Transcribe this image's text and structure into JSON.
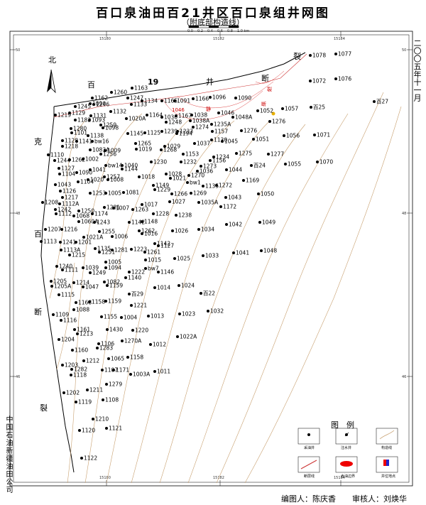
{
  "title": "百口泉油田百21井区百口泉组井网图",
  "subtitle": "（附底部构造线）",
  "scale_bar": {
    "ticks": [
      "0.0",
      "0.2",
      "0.4",
      "0.6",
      "0.8",
      "1.0 km"
    ]
  },
  "right_date": "二〇〇五年十一月",
  "left_org": "中国石油新疆油田公司",
  "footer": {
    "compiler": "编图人：陈庆香",
    "reviewer": "审核人：刘焕华"
  },
  "map_labels": {
    "north": "北",
    "bai": "百",
    "num19": "19",
    "jing": "井",
    "duan_top": "断",
    "lie_top": "裂",
    "ke": "克",
    "bai_left": "百",
    "duan_left": "断",
    "lie_left": "裂",
    "red1": "1046",
    "red2": "裂",
    "red3": "断",
    "red4": "静"
  },
  "coord_labels": {
    "top": [
      "15180",
      "15182",
      "15184"
    ],
    "bottom": [
      "15180",
      "15182",
      "15184"
    ],
    "left": [
      "50",
      "48",
      "46"
    ],
    "right": [
      "50",
      "48",
      "46"
    ]
  },
  "legend": {
    "title": "图　例",
    "items": [
      "采油井",
      "注水井",
      "构造线",
      "断层线",
      "含油边界",
      "井位地点"
    ]
  },
  "wells": [
    [
      "1078",
      437,
      78
    ],
    [
      "1077",
      473,
      76
    ],
    [
      "1072",
      437,
      114
    ],
    [
      "1076",
      473,
      111
    ],
    [
      "1052",
      363,
      156
    ],
    [
      "1057",
      398,
      153
    ],
    [
      "百25",
      438,
      151
    ],
    [
      "百27",
      527,
      143
    ],
    [
      "1276",
      380,
      171
    ],
    [
      "1056",
      400,
      191
    ],
    [
      "1071",
      443,
      190
    ],
    [
      "1051",
      357,
      196
    ],
    [
      "1276b",
      340,
      184
    ],
    [
      "1277",
      378,
      217
    ],
    [
      "1055",
      402,
      231
    ],
    [
      "1070",
      447,
      228
    ],
    [
      "1275",
      333,
      216
    ],
    [
      "1044",
      319,
      239
    ],
    [
      "百24",
      354,
      233
    ],
    [
      "1169",
      343,
      254
    ],
    [
      "1043",
      318,
      278
    ],
    [
      "1050",
      364,
      273
    ],
    [
      "1172",
      311,
      291
    ],
    [
      "1042",
      319,
      316
    ],
    [
      "1049",
      366,
      313
    ],
    [
      "1041",
      329,
      356
    ],
    [
      "1048",
      368,
      353
    ],
    [
      "1034",
      280,
      323
    ],
    [
      "1033",
      286,
      360
    ],
    [
      "1025",
      246,
      364
    ],
    [
      "1024",
      252,
      402
    ],
    [
      "百22",
      283,
      413
    ],
    [
      "1032",
      293,
      438
    ],
    [
      "1023",
      253,
      442
    ],
    [
      "1022A",
      250,
      474
    ],
    [
      "1014",
      218,
      405
    ],
    [
      "1013",
      209,
      445
    ],
    [
      "1012",
      212,
      485
    ],
    [
      "1011",
      218,
      523
    ],
    [
      "1260",
      157,
      130
    ],
    [
      "1163",
      186,
      124
    ],
    [
      "1162",
      130,
      138
    ],
    [
      "1247",
      180,
      138
    ],
    [
      "1245",
      106,
      150
    ],
    [
      "1246",
      132,
      147
    ],
    [
      "1090",
      127,
      146
    ],
    [
      "1133",
      185,
      147
    ],
    [
      "1134",
      200,
      142
    ],
    [
      "1165",
      228,
      142
    ],
    [
      "1091",
      246,
      142
    ],
    [
      "1166",
      272,
      139
    ],
    [
      "1096",
      296,
      137
    ],
    [
      "1090b",
      332,
      138
    ],
    [
      "1219",
      78,
      162
    ],
    [
      "1129",
      98,
      159
    ],
    [
      "1132",
      156,
      157
    ],
    [
      "1131",
      128,
      163
    ],
    [
      "1182",
      106,
      169
    ],
    [
      "1093",
      126,
      169
    ],
    [
      "1020A",
      178,
      167
    ],
    [
      "1164",
      207,
      162
    ],
    [
      "1030",
      228,
      165
    ],
    [
      "1167",
      248,
      163
    ],
    [
      "1038",
      270,
      162
    ],
    [
      "1046",
      308,
      159
    ],
    [
      "1048A",
      328,
      165
    ],
    [
      "1280",
      100,
      181
    ],
    [
      "1259",
      142,
      176
    ],
    [
      "1098",
      145,
      180
    ],
    [
      "1248",
      234,
      172
    ],
    [
      "1038A",
      268,
      170
    ],
    [
      "1274",
      272,
      179
    ],
    [
      "1235A",
      298,
      175
    ],
    [
      "1157",
      299,
      185
    ],
    [
      "1101",
      101,
      187
    ],
    [
      "1138",
      124,
      191
    ],
    [
      "1145",
      180,
      188
    ],
    [
      "1239",
      228,
      185
    ],
    [
      "1233",
      250,
      185
    ],
    [
      "1125",
      204,
      187
    ],
    [
      "1194",
      249,
      188
    ],
    [
      "1128",
      88,
      198
    ],
    [
      "1141",
      108,
      199
    ],
    [
      "1bw16",
      130,
      199
    ],
    [
      "1265",
      191,
      202
    ],
    [
      "1029",
      232,
      206
    ],
    [
      "1130",
      298,
      197
    ],
    [
      "1045",
      313,
      199
    ],
    [
      "1218",
      88,
      206
    ],
    [
      "1083A",
      127,
      211
    ],
    [
      "1009",
      148,
      212
    ],
    [
      "1019",
      192,
      210
    ],
    [
      "1268",
      227,
      211
    ],
    [
      "1037",
      274,
      202
    ],
    [
      "1110",
      68,
      218
    ],
    [
      "1256",
      142,
      217
    ],
    [
      "1153",
      258,
      217
    ],
    [
      "1234",
      301,
      221
    ],
    [
      "1244",
      77,
      226
    ],
    [
      "1262",
      98,
      225
    ],
    [
      "1002",
      117,
      224
    ],
    [
      "1230",
      213,
      228
    ],
    [
      "1232",
      255,
      228
    ],
    [
      "1156",
      296,
      226
    ],
    [
      "1127",
      83,
      237
    ],
    [
      "1041b",
      127,
      239
    ],
    [
      "1bw14",
      149,
      233
    ],
    [
      "1040",
      172,
      233
    ],
    [
      "1144",
      172,
      238
    ],
    [
      "1273",
      283,
      234
    ],
    [
      "1104",
      84,
      245
    ],
    [
      "1090c",
      108,
      243
    ],
    [
      "1257",
      147,
      249
    ],
    [
      "1018",
      196,
      249
    ],
    [
      "1028",
      234,
      245
    ],
    [
      "1270",
      266,
      247
    ],
    [
      "1036",
      278,
      241
    ],
    [
      "1020",
      124,
      253
    ],
    [
      "1008",
      152,
      253
    ],
    [
      "1021",
      240,
      251
    ],
    [
      "1bw1",
      264,
      257
    ],
    [
      "1272",
      305,
      261
    ],
    [
      "1104b",
      110,
      256
    ],
    [
      "1043c",
      78,
      260
    ],
    [
      "1149",
      216,
      261
    ],
    [
      "1229",
      218,
      267
    ],
    [
      "1135",
      286,
      262
    ],
    [
      "1126",
      85,
      269
    ],
    [
      "1253",
      127,
      272
    ],
    [
      "1005",
      149,
      272
    ],
    [
      "1081",
      174,
      271
    ],
    [
      "1266",
      242,
      273
    ],
    [
      "1269",
      269,
      272
    ],
    [
      "1217",
      88,
      278
    ],
    [
      "1208",
      60,
      285
    ],
    [
      "1112A",
      84,
      287
    ],
    [
      "1017",
      200,
      288
    ],
    [
      "1027",
      239,
      284
    ],
    [
      "1035A",
      280,
      285
    ],
    [
      "1242",
      78,
      295
    ],
    [
      "1250",
      111,
      297
    ],
    [
      "1281",
      147,
      292
    ],
    [
      "1007",
      160,
      293
    ],
    [
      "1263",
      187,
      295
    ],
    [
      "1112",
      79,
      301
    ],
    [
      "1174",
      130,
      301
    ],
    [
      "1228",
      216,
      301
    ],
    [
      "1068",
      104,
      304
    ],
    [
      "1060A",
      111,
      312
    ],
    [
      "1238",
      248,
      303
    ],
    [
      "1243",
      133,
      313
    ],
    [
      "1142",
      182,
      313
    ],
    [
      "1148",
      200,
      312
    ],
    [
      "1207",
      64,
      323
    ],
    [
      "1216",
      87,
      323
    ],
    [
      "1255",
      140,
      326
    ],
    [
      "1262b",
      196,
      325
    ],
    [
      "1026",
      243,
      325
    ],
    [
      "1016",
      200,
      329
    ],
    [
      "1021A",
      118,
      334
    ],
    [
      "1006",
      158,
      333
    ],
    [
      "1113",
      58,
      340
    ],
    [
      "1241",
      85,
      341
    ],
    [
      "1201",
      107,
      341
    ],
    [
      "1142b",
      218,
      343
    ],
    [
      "1135b",
      134,
      350
    ],
    [
      "1127b",
      223,
      346
    ],
    [
      "1113A",
      86,
      352
    ],
    [
      "1251",
      140,
      355
    ],
    [
      "1281b",
      158,
      352
    ],
    [
      "1223",
      185,
      351
    ],
    [
      "1261",
      204,
      355
    ],
    [
      "1215",
      98,
      359
    ],
    [
      "1005b",
      149,
      369
    ],
    [
      "1015",
      205,
      366
    ],
    [
      "1240",
      80,
      375
    ],
    [
      "1039",
      117,
      377
    ],
    [
      "1094",
      149,
      377
    ],
    [
      "1bw7",
      205,
      378
    ],
    [
      "1111",
      88,
      380
    ],
    [
      "1249",
      127,
      384
    ],
    [
      "1222",
      182,
      383
    ],
    [
      "1146",
      223,
      383
    ],
    [
      "1140",
      177,
      391
    ],
    [
      "1205",
      72,
      396
    ],
    [
      "1214",
      104,
      398
    ],
    [
      "1082",
      147,
      397
    ],
    [
      "1205A",
      73,
      403
    ],
    [
      "1047",
      117,
      404
    ],
    [
      "1159",
      151,
      402
    ],
    [
      "1115",
      83,
      415
    ],
    [
      "百29",
      182,
      414
    ],
    [
      "1168",
      107,
      426
    ],
    [
      "1158",
      126,
      425
    ],
    [
      "1159b",
      149,
      424
    ],
    [
      "1221",
      185,
      430
    ],
    [
      "1088",
      104,
      436
    ],
    [
      "1109",
      75,
      443
    ],
    [
      "1155",
      143,
      446
    ],
    [
      "1004",
      171,
      447
    ],
    [
      "1116",
      86,
      451
    ],
    [
      "1161",
      105,
      464
    ],
    [
      "1430",
      151,
      464
    ],
    [
      "1220",
      187,
      465
    ],
    [
      "1213",
      109,
      470
    ],
    [
      "1204",
      83,
      478
    ],
    [
      "1106",
      139,
      484
    ],
    [
      "1270A",
      172,
      480
    ],
    [
      "1283",
      137,
      490
    ],
    [
      "1160",
      102,
      493
    ],
    [
      "1158b",
      180,
      503
    ],
    [
      "1065",
      153,
      505
    ],
    [
      "1212",
      118,
      508
    ],
    [
      "1203",
      88,
      514
    ],
    [
      "1282",
      101,
      520
    ],
    [
      "1107",
      144,
      521
    ],
    [
      "1171",
      160,
      521
    ],
    [
      "1118",
      100,
      528
    ],
    [
      "1003A",
      184,
      527
    ],
    [
      "1279",
      150,
      541
    ],
    [
      "1211",
      123,
      549
    ],
    [
      "1202",
      90,
      553
    ],
    [
      "1119",
      107,
      566
    ],
    [
      "1108",
      145,
      563
    ],
    [
      "1210",
      131,
      590
    ],
    [
      "1121",
      150,
      603
    ],
    [
      "1120",
      112,
      606
    ],
    [
      "1122",
      115,
      645
    ]
  ]
}
